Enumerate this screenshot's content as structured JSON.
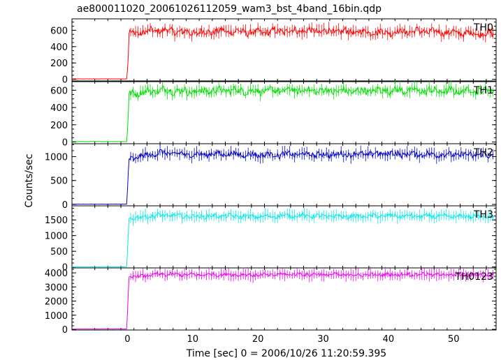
{
  "chart_data": {
    "type": "line",
    "title": "ae800011020_20061026112059_wam3_bst_4band_16bin.qdp",
    "xlabel": "Time [sec] 0 = 2006/10/26 11:20:59.395",
    "ylabel": "Counts/sec",
    "xlim": [
      -8.5,
      56.5
    ],
    "x_ticks": [
      0,
      10,
      20,
      30,
      40,
      50
    ],
    "x_tick_labels": [
      "0",
      "10",
      "20",
      "30",
      "40",
      "50"
    ],
    "onset_time": 0.1,
    "grid": false,
    "panels": [
      {
        "label": "TH0",
        "color": "#ff0000",
        "ylim": [
          -20,
          740
        ],
        "y_ticks": [
          0,
          200,
          400,
          600
        ],
        "y_tick_labels": [
          "0",
          "200",
          "400",
          "600"
        ],
        "pre_level": 5,
        "level": 580,
        "noise": 45,
        "series": [
          {
            "t": -8.5,
            "v": 5
          },
          {
            "t": -0.1,
            "v": 5
          },
          {
            "t": 0.1,
            "v": 210
          },
          {
            "t": 0.25,
            "v": 560
          },
          {
            "t": 5,
            "v": 600
          },
          {
            "t": 10,
            "v": 570
          },
          {
            "t": 15,
            "v": 590
          },
          {
            "t": 20,
            "v": 575
          },
          {
            "t": 25,
            "v": 595
          },
          {
            "t": 30,
            "v": 590
          },
          {
            "t": 35,
            "v": 580
          },
          {
            "t": 40,
            "v": 575
          },
          {
            "t": 45,
            "v": 590
          },
          {
            "t": 50,
            "v": 570
          },
          {
            "t": 56,
            "v": 555
          }
        ]
      },
      {
        "label": "TH1",
        "color": "#00e000",
        "ylim": [
          -20,
          700
        ],
        "y_ticks": [
          0,
          200,
          400,
          600
        ],
        "y_tick_labels": [
          "0",
          "200",
          "400",
          "600"
        ],
        "pre_level": 5,
        "level": 590,
        "noise": 45,
        "series": [
          {
            "t": -8.5,
            "v": 5
          },
          {
            "t": -0.1,
            "v": 5
          },
          {
            "t": 0.1,
            "v": 250
          },
          {
            "t": 0.25,
            "v": 560
          },
          {
            "t": 5,
            "v": 600
          },
          {
            "t": 10,
            "v": 585
          },
          {
            "t": 15,
            "v": 600
          },
          {
            "t": 20,
            "v": 590
          },
          {
            "t": 25,
            "v": 600
          },
          {
            "t": 30,
            "v": 595
          },
          {
            "t": 35,
            "v": 590
          },
          {
            "t": 40,
            "v": 600
          },
          {
            "t": 45,
            "v": 595
          },
          {
            "t": 50,
            "v": 590
          },
          {
            "t": 56,
            "v": 600
          }
        ]
      },
      {
        "label": "TH2",
        "color": "#0000cc",
        "ylim": [
          -30,
          1270
        ],
        "y_ticks": [
          0,
          500,
          1000
        ],
        "y_tick_labels": [
          "0",
          "500",
          "1000"
        ],
        "pre_level": 5,
        "level": 1040,
        "noise": 65,
        "series": [
          {
            "t": -8.5,
            "v": 5
          },
          {
            "t": -0.1,
            "v": 5
          },
          {
            "t": 0.1,
            "v": 580
          },
          {
            "t": 0.25,
            "v": 950
          },
          {
            "t": 5,
            "v": 1080
          },
          {
            "t": 10,
            "v": 1040
          },
          {
            "t": 15,
            "v": 1060
          },
          {
            "t": 20,
            "v": 1030
          },
          {
            "t": 25,
            "v": 1050
          },
          {
            "t": 30,
            "v": 1040
          },
          {
            "t": 35,
            "v": 1050
          },
          {
            "t": 40,
            "v": 1060
          },
          {
            "t": 45,
            "v": 1050
          },
          {
            "t": 50,
            "v": 1040
          },
          {
            "t": 56,
            "v": 1030
          }
        ]
      },
      {
        "label": "TH3",
        "color": "#00e8e8",
        "ylim": [
          -30,
          1950
        ],
        "y_ticks": [
          0,
          500,
          1000,
          1500
        ],
        "y_tick_labels": [
          "0",
          "500",
          "1000",
          "1500"
        ],
        "pre_level": 5,
        "level": 1620,
        "noise": 70,
        "series": [
          {
            "t": -8.5,
            "v": 5
          },
          {
            "t": -0.1,
            "v": 5
          },
          {
            "t": 0.1,
            "v": 920
          },
          {
            "t": 0.25,
            "v": 1550
          },
          {
            "t": 5,
            "v": 1650
          },
          {
            "t": 10,
            "v": 1610
          },
          {
            "t": 15,
            "v": 1630
          },
          {
            "t": 20,
            "v": 1600
          },
          {
            "t": 25,
            "v": 1640
          },
          {
            "t": 30,
            "v": 1620
          },
          {
            "t": 35,
            "v": 1610
          },
          {
            "t": 40,
            "v": 1630
          },
          {
            "t": 45,
            "v": 1620
          },
          {
            "t": 50,
            "v": 1610
          },
          {
            "t": 56,
            "v": 1620
          }
        ]
      },
      {
        "label": "TH0123",
        "color": "#ee00ee",
        "ylim": [
          -50,
          4350
        ],
        "y_ticks": [
          0,
          1000,
          2000,
          3000,
          4000
        ],
        "y_tick_labels": [
          "0",
          "1000",
          "2000",
          "3000",
          "4000"
        ],
        "pre_level": 20,
        "level": 3880,
        "noise": 130,
        "series": [
          {
            "t": -8.5,
            "v": 20
          },
          {
            "t": -0.1,
            "v": 20
          },
          {
            "t": 0.1,
            "v": 2200
          },
          {
            "t": 0.25,
            "v": 3700
          },
          {
            "t": 5,
            "v": 3900
          },
          {
            "t": 10,
            "v": 3860
          },
          {
            "t": 15,
            "v": 3880
          },
          {
            "t": 20,
            "v": 3840
          },
          {
            "t": 25,
            "v": 3900
          },
          {
            "t": 30,
            "v": 3880
          },
          {
            "t": 35,
            "v": 3850
          },
          {
            "t": 40,
            "v": 3870
          },
          {
            "t": 45,
            "v": 3900
          },
          {
            "t": 50,
            "v": 3860
          },
          {
            "t": 56,
            "v": 3850
          }
        ]
      }
    ]
  }
}
